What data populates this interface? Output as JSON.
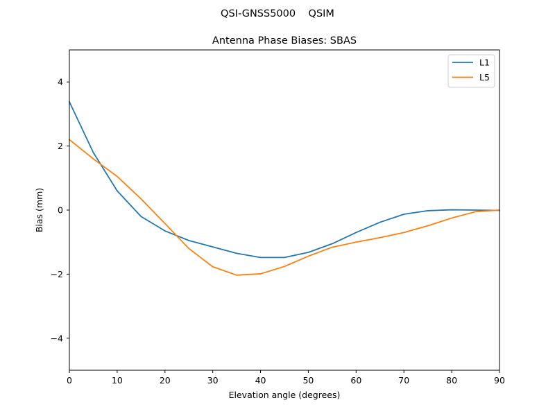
{
  "chart_data": {
    "type": "line",
    "suptitle": "QSI-GNSS5000    QSIM",
    "title": "Antenna Phase Biases: SBAS",
    "xlabel": "Elevation angle (degrees)",
    "ylabel": "Bias (mm)",
    "xlim": [
      0,
      90
    ],
    "ylim": [
      -5,
      5
    ],
    "xticks": [
      0,
      10,
      20,
      30,
      40,
      50,
      60,
      70,
      80,
      90
    ],
    "yticks": [
      -4,
      -2,
      0,
      2,
      4
    ],
    "grid": false,
    "legend_position": "top-right",
    "x": [
      0,
      5,
      10,
      15,
      20,
      25,
      30,
      35,
      40,
      45,
      50,
      55,
      60,
      65,
      70,
      75,
      80,
      85,
      90
    ],
    "series": [
      {
        "name": "L1",
        "color": "#1f77b4",
        "values": [
          3.38,
          1.8,
          0.6,
          -0.2,
          -0.65,
          -0.95,
          -1.15,
          -1.35,
          -1.48,
          -1.48,
          -1.32,
          -1.05,
          -0.7,
          -0.38,
          -0.13,
          -0.02,
          0.01,
          0.0,
          -0.01
        ]
      },
      {
        "name": "L5",
        "color": "#ff7f0e",
        "values": [
          2.2,
          1.6,
          1.05,
          0.35,
          -0.42,
          -1.2,
          -1.77,
          -2.03,
          -1.99,
          -1.76,
          -1.44,
          -1.16,
          -1.0,
          -0.86,
          -0.7,
          -0.49,
          -0.25,
          -0.05,
          0.0
        ]
      }
    ]
  }
}
